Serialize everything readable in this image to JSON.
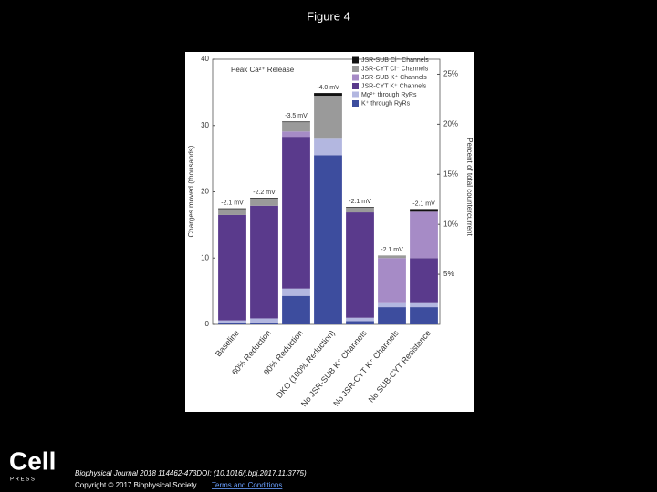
{
  "slide": {
    "title": "Figure 4",
    "logo": "Cell",
    "logo_sub": "P R E S S",
    "citation": "Biophysical Journal 2018 114462-473DOI: (10.1016/j.bpj.2017.11.3775)",
    "copyright": "Copyright © 2017 Biophysical Society",
    "link": "Terms and Conditions"
  },
  "chart_data": {
    "type": "stacked-bar",
    "title": "Peak Ca²⁺ Release",
    "ylabel": "Charges moved (thousands)",
    "y2label": "Percent of total countercurrent",
    "categories": [
      "Baseline",
      "60% Reduction",
      "90% Reduction",
      "DKO (100% Reduction)",
      "No JSR-SUB K⁺ Channels",
      "No JSR-CYT K⁺ Channels",
      "No SUB-CYT Resistance"
    ],
    "annotations": [
      "-2.1 mV",
      "-2.2 mV",
      "-3.5 mV",
      "-4.0 mV",
      "-2.1 mV",
      "-2.1 mV",
      "-2.1 mV"
    ],
    "series": [
      {
        "name": "K⁺ through RyRs",
        "color": "#3d4d9e",
        "values": [
          0.2,
          0.3,
          4.3,
          25.5,
          0.5,
          2.6,
          2.6
        ]
      },
      {
        "name": "Mg²⁺ through RyRs",
        "color": "#b3b7e0",
        "values": [
          0.4,
          0.6,
          1.1,
          2.5,
          0.5,
          0.6,
          0.6
        ]
      },
      {
        "name": "JSR-CYT K⁺ Channels",
        "color": "#5a3a8c",
        "values": [
          15.9,
          17.0,
          22.9,
          0,
          15.9,
          0,
          6.8
        ]
      },
      {
        "name": "JSR-SUB K⁺ Channels",
        "color": "#a68bc6",
        "values": [
          0,
          0,
          0.8,
          0,
          0,
          6.8,
          7.0
        ]
      },
      {
        "name": "JSR-CYT Cl⁻ Channels",
        "color": "#9a9a9a",
        "values": [
          0.9,
          1.1,
          1.4,
          6.5,
          0.7,
          0.4,
          0
        ]
      },
      {
        "name": "JSR-SUB Cl⁻ Channels",
        "color": "#111111",
        "values": [
          0.1,
          0.1,
          0.1,
          0.4,
          0.1,
          0,
          0.4
        ]
      }
    ],
    "ylim": [
      0,
      40
    ],
    "yticks": [
      0,
      10,
      20,
      30,
      40
    ],
    "y2lim": [
      0,
      26.5
    ],
    "y2ticks": [
      {
        "value": 5,
        "label": "5%"
      },
      {
        "value": 10,
        "label": "10%"
      },
      {
        "value": 15,
        "label": "15%"
      },
      {
        "value": 20,
        "label": "20%"
      },
      {
        "value": 25,
        "label": "25%"
      }
    ],
    "legend": "top-right"
  }
}
